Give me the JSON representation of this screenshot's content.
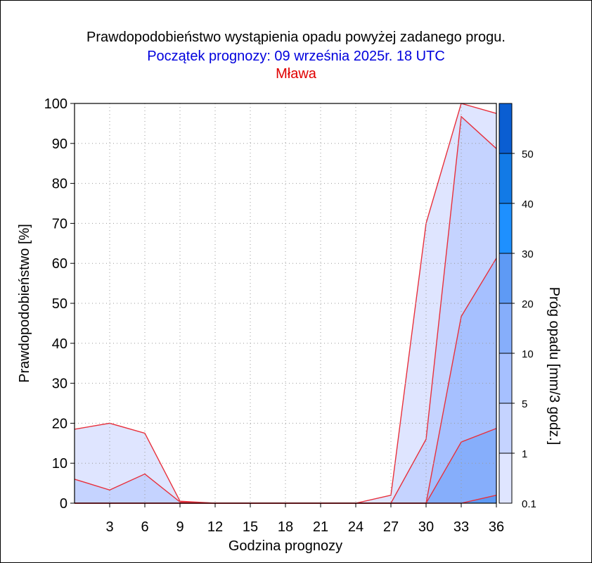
{
  "title": "Prawdopodobieństwo wystąpienia opadu powyżej zadanego progu.",
  "subtitle": "Początek prognozy: 09 września 2025r. 18 UTC",
  "location": "Mława",
  "chart_data": {
    "type": "area",
    "title": "Prawdopodobieństwo wystąpienia opadu powyżej zadanego progu.",
    "subtitle": "Początek prognozy: 09 września 2025r. 18 UTC",
    "location": "Mława",
    "xlabel": "Godzina prognozy",
    "ylabel": "Prawdopodobieństwo [%]",
    "colorbar_label": "Próg opadu [mm/3 godz.]",
    "xlim": [
      0,
      36
    ],
    "ylim": [
      0,
      100
    ],
    "x_ticks": [
      3,
      6,
      9,
      12,
      15,
      18,
      21,
      24,
      27,
      30,
      33,
      36
    ],
    "y_ticks": [
      0,
      10,
      20,
      30,
      40,
      50,
      60,
      70,
      80,
      90,
      100
    ],
    "grid": true,
    "x": [
      0,
      3,
      6,
      9,
      12,
      15,
      18,
      21,
      24,
      27,
      30,
      33,
      36
    ],
    "series": [
      {
        "name": "0.1",
        "color": "#dfe5ff",
        "values": [
          18.5,
          20,
          17.5,
          0.5,
          0,
          0,
          0,
          0,
          0,
          2,
          70,
          100,
          97.5
        ]
      },
      {
        "name": "1",
        "color": "#c5d3ff",
        "values": [
          6,
          3.3,
          7.3,
          0.3,
          0,
          0,
          0,
          0,
          0,
          0,
          16,
          96.7,
          88.7
        ]
      },
      {
        "name": "5",
        "color": "#a6c0ff",
        "values": [
          0,
          0,
          0,
          0,
          0,
          0,
          0,
          0,
          0,
          0,
          0,
          46.7,
          61.3
        ]
      },
      {
        "name": "10",
        "color": "#86aefb",
        "values": [
          0,
          0,
          0,
          0,
          0,
          0,
          0,
          0,
          0,
          0,
          0,
          15.3,
          18.7
        ]
      },
      {
        "name": "20",
        "color": "#5e9af5",
        "values": [
          0,
          0,
          0,
          0,
          0,
          0,
          0,
          0,
          0,
          0,
          0,
          0,
          2
        ]
      }
    ],
    "colorbar": {
      "ticks": [
        "0.1",
        "1",
        "5",
        "10",
        "20",
        "30",
        "40",
        "50"
      ],
      "colors": [
        "#dfe5ff",
        "#c5d3ff",
        "#a6c0ff",
        "#86aefb",
        "#5e9af5",
        "#1e90ff",
        "#127ae6",
        "#0a5ed2",
        "#0a3fa8"
      ]
    }
  }
}
